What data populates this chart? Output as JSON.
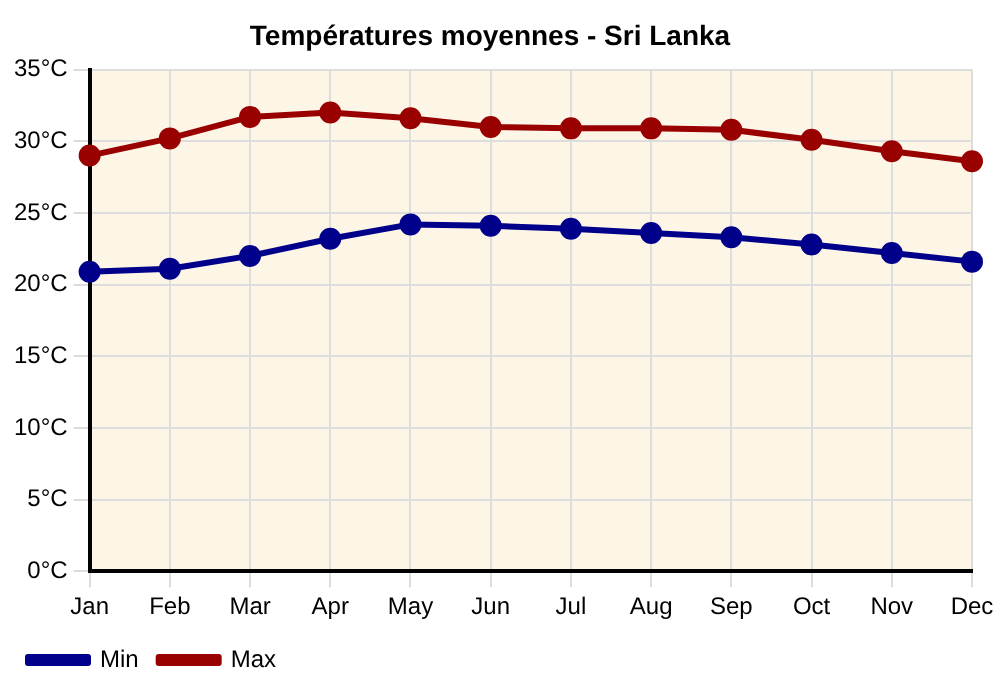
{
  "chart_data": {
    "type": "line",
    "title": "Températures moyennes - Sri Lanka",
    "categories": [
      "Jan",
      "Feb",
      "Mar",
      "Apr",
      "May",
      "Jun",
      "Jul",
      "Aug",
      "Sep",
      "Oct",
      "Nov",
      "Dec"
    ],
    "series": [
      {
        "name": "Min",
        "color": "#00008b",
        "values": [
          20.9,
          21.1,
          22.0,
          23.2,
          24.2,
          24.1,
          23.9,
          23.6,
          23.3,
          22.8,
          22.2,
          21.6
        ]
      },
      {
        "name": "Max",
        "color": "#990000",
        "values": [
          29.0,
          30.2,
          31.7,
          32.0,
          31.6,
          31.0,
          30.9,
          30.9,
          30.8,
          30.1,
          29.3,
          28.6
        ]
      }
    ],
    "ylim": [
      0,
      35
    ],
    "yticks": [
      {
        "value": 0,
        "label": "0°C"
      },
      {
        "value": 5,
        "label": "5°C"
      },
      {
        "value": 10,
        "label": "10°C"
      },
      {
        "value": 15,
        "label": "15°C"
      },
      {
        "value": 20,
        "label": "20°C"
      },
      {
        "value": 25,
        "label": "25°C"
      },
      {
        "value": 30,
        "label": "30°C"
      },
      {
        "value": 35,
        "label": "35°C"
      }
    ],
    "grid": true,
    "legend": "bottom left",
    "marker": "circle",
    "line_style": "solid"
  }
}
